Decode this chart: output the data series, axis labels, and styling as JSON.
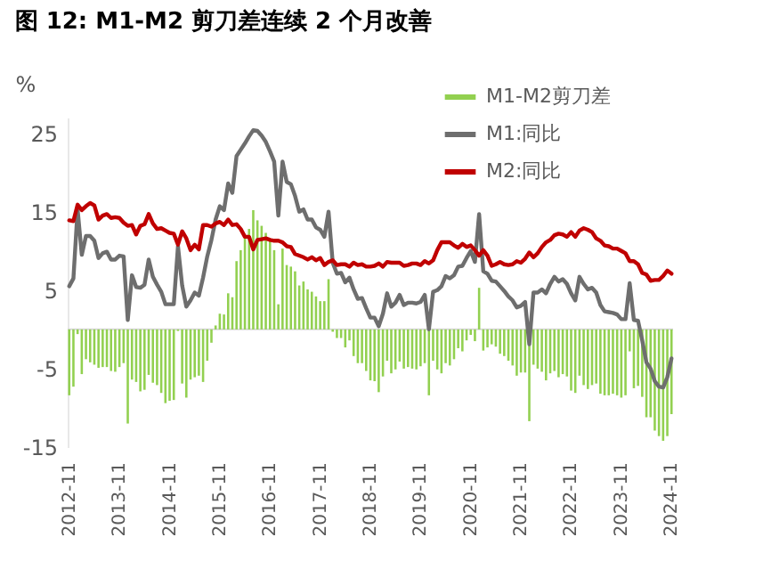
{
  "chart_data": {
    "type": "bar",
    "title": "图 12: M1-M2 剪刀差连续 2 个月改善",
    "ylabel": "%",
    "categories": [
      "2012-11",
      null,
      null,
      null,
      null,
      null,
      null,
      null,
      null,
      null,
      null,
      null,
      "2013-11",
      null,
      null,
      null,
      null,
      null,
      null,
      null,
      null,
      null,
      null,
      null,
      "2014-11",
      null,
      null,
      null,
      null,
      null,
      null,
      null,
      null,
      null,
      null,
      null,
      "2015-11",
      null,
      null,
      null,
      null,
      null,
      null,
      null,
      null,
      null,
      null,
      null,
      "2016-11",
      null,
      null,
      null,
      null,
      null,
      null,
      null,
      null,
      null,
      null,
      null,
      "2017-11",
      null,
      null,
      null,
      null,
      null,
      null,
      null,
      null,
      null,
      null,
      null,
      "2018-11",
      null,
      null,
      null,
      null,
      null,
      null,
      null,
      null,
      null,
      null,
      null,
      "2019-11",
      null,
      null,
      null,
      null,
      null,
      null,
      null,
      null,
      null,
      null,
      null,
      "2020-11",
      null,
      null,
      null,
      null,
      null,
      null,
      null,
      null,
      null,
      null,
      null,
      "2021-11",
      null,
      null,
      null,
      null,
      null,
      null,
      null,
      null,
      null,
      null,
      null,
      "2022-11",
      null,
      null,
      null,
      null,
      null,
      null,
      null,
      null,
      null,
      null,
      null,
      "2023-11",
      null,
      null,
      null,
      null,
      null,
      null,
      null,
      null,
      null,
      null,
      null,
      "2024-11"
    ],
    "series": [
      {
        "name": "M1-M2剪刀差",
        "color": "#92d050",
        "values": [
          -8.4,
          -7.3,
          -0.6,
          -5.7,
          -3.8,
          -4.2,
          -4.5,
          -4.9,
          -4.8,
          -4.8,
          -5.3,
          -5.4,
          -4.8,
          -4.3,
          -12.0,
          -6.4,
          -6.7,
          -7.9,
          -7.7,
          -5.8,
          -6.8,
          -7.1,
          -8.1,
          -9.4,
          -9.1,
          -9.0,
          -0.2,
          -6.9,
          -8.7,
          -6.4,
          -6.1,
          -5.9,
          -6.7,
          -4.0,
          -1.7,
          0.5,
          2.0,
          1.9,
          4.6,
          4.1,
          8.7,
          10.1,
          11.9,
          12.8,
          15.2,
          13.9,
          13.2,
          12.3,
          11.3,
          10.1,
          3.2,
          10.3,
          8.2,
          8.0,
          7.4,
          5.6,
          6.1,
          5.1,
          4.8,
          4.2,
          3.6,
          3.6,
          6.4,
          -0.3,
          -1.1,
          -1.1,
          -2.3,
          -1.4,
          -3.4,
          -4.3,
          -4.3,
          -5.3,
          -6.5,
          -6.6,
          -8.0,
          -6.0,
          -4.0,
          -5.6,
          -5.1,
          -4.1,
          -5.0,
          -4.8,
          -5.0,
          -5.1,
          -4.7,
          -4.3,
          -8.4,
          -4.0,
          -5.1,
          -5.6,
          -4.3,
          -4.6,
          -3.8,
          -2.4,
          -2.8,
          -1.4,
          -0.7,
          -1.5,
          5.3,
          -2.7,
          -2.3,
          -1.9,
          -2.2,
          -3.1,
          -3.4,
          -4.0,
          -4.6,
          -5.9,
          -5.5,
          -5.5,
          -11.7,
          -4.5,
          -5.0,
          -5.4,
          -6.5,
          -5.6,
          -5.3,
          -6.1,
          -5.7,
          -6.0,
          -7.8,
          -8.1,
          -5.9,
          -7.1,
          -7.6,
          -7.1,
          -6.9,
          -8.2,
          -8.4,
          -8.4,
          -8.2,
          -8.4,
          -8.7,
          -8.4,
          -2.8,
          -7.5,
          -7.2,
          -8.6,
          -11.2,
          -11.2,
          -12.9,
          -13.6,
          -14.2,
          -13.6,
          -10.8
        ]
      },
      {
        "name": "M1:同比",
        "type": "line",
        "color": "#6e6e6e",
        "values": [
          5.5,
          6.5,
          15.3,
          9.5,
          11.9,
          11.9,
          11.3,
          9.1,
          9.7,
          9.9,
          8.9,
          8.9,
          9.4,
          9.3,
          1.2,
          6.9,
          5.4,
          5.3,
          5.7,
          8.9,
          6.7,
          5.7,
          4.8,
          3.2,
          3.2,
          3.2,
          10.6,
          5.6,
          2.9,
          3.7,
          4.7,
          4.3,
          6.6,
          9.3,
          11.4,
          14.0,
          15.7,
          15.2,
          18.6,
          17.4,
          22.1,
          22.9,
          23.7,
          24.6,
          25.4,
          25.3,
          24.7,
          23.9,
          22.7,
          21.4,
          14.5,
          21.4,
          18.8,
          18.5,
          17.0,
          15.0,
          15.3,
          14.0,
          14.0,
          13.0,
          12.7,
          11.8,
          15.0,
          8.5,
          7.1,
          7.2,
          6.0,
          6.6,
          5.1,
          3.9,
          4.0,
          2.7,
          1.5,
          1.5,
          0.4,
          2.0,
          4.6,
          2.9,
          3.4,
          4.4,
          3.1,
          3.4,
          3.4,
          3.3,
          3.5,
          4.4,
          0.0,
          4.8,
          5.0,
          5.5,
          6.8,
          6.5,
          6.9,
          8.0,
          8.1,
          9.1,
          10.0,
          8.6,
          14.7,
          7.4,
          7.1,
          6.2,
          6.1,
          5.5,
          4.9,
          4.2,
          3.7,
          2.8,
          3.0,
          3.5,
          -1.9,
          4.7,
          4.7,
          5.1,
          4.6,
          5.8,
          6.7,
          6.1,
          6.4,
          5.8,
          4.6,
          3.7,
          6.7,
          5.8,
          5.1,
          5.3,
          4.7,
          3.1,
          2.3,
          2.2,
          2.1,
          1.9,
          1.3,
          1.3,
          5.9,
          1.2,
          1.1,
          -1.4,
          -4.2,
          -5.0,
          -6.6,
          -7.3,
          -7.4,
          -6.1,
          -3.7
        ]
      },
      {
        "name": "M2:同比",
        "type": "line",
        "color": "#c00000",
        "values": [
          13.9,
          13.8,
          15.9,
          15.2,
          15.7,
          16.1,
          15.8,
          14.0,
          14.5,
          14.7,
          14.2,
          14.3,
          14.2,
          13.6,
          13.2,
          13.3,
          12.1,
          13.2,
          13.4,
          14.7,
          13.5,
          12.8,
          12.9,
          12.6,
          12.3,
          12.2,
          10.8,
          12.5,
          11.6,
          10.1,
          10.8,
          10.2,
          13.3,
          13.3,
          13.1,
          13.5,
          13.7,
          13.3,
          14.0,
          13.3,
          13.4,
          12.8,
          11.8,
          11.8,
          10.2,
          11.4,
          11.5,
          11.6,
          11.4,
          11.3,
          11.3,
          11.1,
          10.6,
          10.5,
          9.6,
          9.4,
          9.2,
          8.9,
          9.2,
          8.8,
          9.1,
          8.2,
          8.6,
          8.8,
          8.2,
          8.3,
          8.3,
          8.0,
          8.5,
          8.2,
          8.3,
          8.0,
          8.0,
          8.1,
          8.4,
          8.0,
          8.6,
          8.5,
          8.5,
          8.5,
          8.1,
          8.2,
          8.4,
          8.4,
          8.2,
          8.7,
          8.4,
          8.8,
          10.1,
          11.1,
          11.1,
          11.1,
          10.7,
          10.4,
          10.9,
          10.5,
          10.7,
          10.1,
          9.4,
          10.1,
          9.4,
          8.1,
          8.3,
          8.6,
          8.3,
          8.2,
          8.3,
          8.7,
          8.5,
          9.0,
          9.8,
          9.2,
          9.7,
          10.5,
          11.1,
          11.4,
          12.0,
          12.2,
          12.1,
          11.8,
          12.4,
          11.8,
          12.6,
          12.9,
          12.7,
          12.4,
          11.6,
          11.3,
          10.7,
          10.6,
          10.3,
          10.3,
          10.0,
          9.7,
          8.7,
          8.7,
          8.3,
          7.2,
          7.0,
          6.2,
          6.3,
          6.3,
          6.8,
          7.5,
          7.1
        ]
      }
    ],
    "ylim": [
      -15,
      27
    ],
    "yticks": [
      -15,
      -5,
      5,
      15,
      25
    ],
    "grid": false,
    "legend": "top right",
    "ref_lines": [
      {
        "axis": "y",
        "value": 0,
        "color": "#d9d9d9"
      }
    ]
  }
}
